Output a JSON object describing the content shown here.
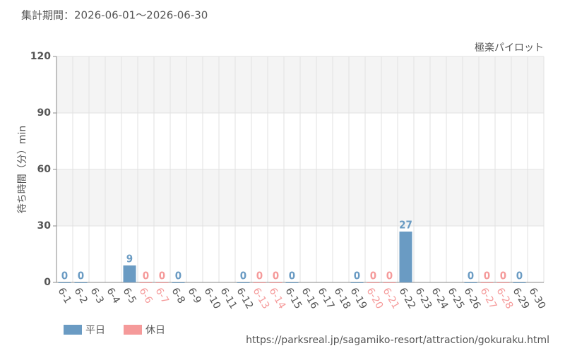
{
  "chart_data": {
    "type": "bar",
    "title": "集計期間：2026-06-01～2026-06-30",
    "subtitle": "極楽パイロット",
    "ylabel": "待ち時間（分）min",
    "source": "https://parksreal.jp/sagamiko-resort/attraction/gokuraku.html",
    "categories": [
      "6-1",
      "6-2",
      "6-3",
      "6-4",
      "6-5",
      "6-6",
      "6-7",
      "6-8",
      "6-9",
      "6-10",
      "6-11",
      "6-12",
      "6-13",
      "6-14",
      "6-15",
      "6-16",
      "6-17",
      "6-18",
      "6-19",
      "6-20",
      "6-21",
      "6-22",
      "6-23",
      "6-24",
      "6-25",
      "6-26",
      "6-27",
      "6-28",
      "6-29",
      "6-30"
    ],
    "series": [
      {
        "name": "平日",
        "color": "#6a9bc3",
        "values": [
          0,
          0,
          null,
          null,
          9,
          null,
          null,
          0,
          null,
          null,
          null,
          0,
          null,
          null,
          0,
          null,
          null,
          null,
          0,
          null,
          null,
          27,
          null,
          null,
          null,
          0,
          null,
          null,
          0,
          null
        ]
      },
      {
        "name": "休日",
        "color": "#f59a9a",
        "values": [
          null,
          null,
          null,
          null,
          null,
          0,
          0,
          null,
          null,
          null,
          null,
          null,
          0,
          0,
          null,
          null,
          null,
          null,
          null,
          0,
          0,
          null,
          null,
          null,
          null,
          null,
          0,
          0,
          null,
          null
        ]
      }
    ],
    "ylim": [
      0,
      120
    ],
    "yticks": [
      0,
      30,
      60,
      90,
      120
    ],
    "grid": true
  }
}
